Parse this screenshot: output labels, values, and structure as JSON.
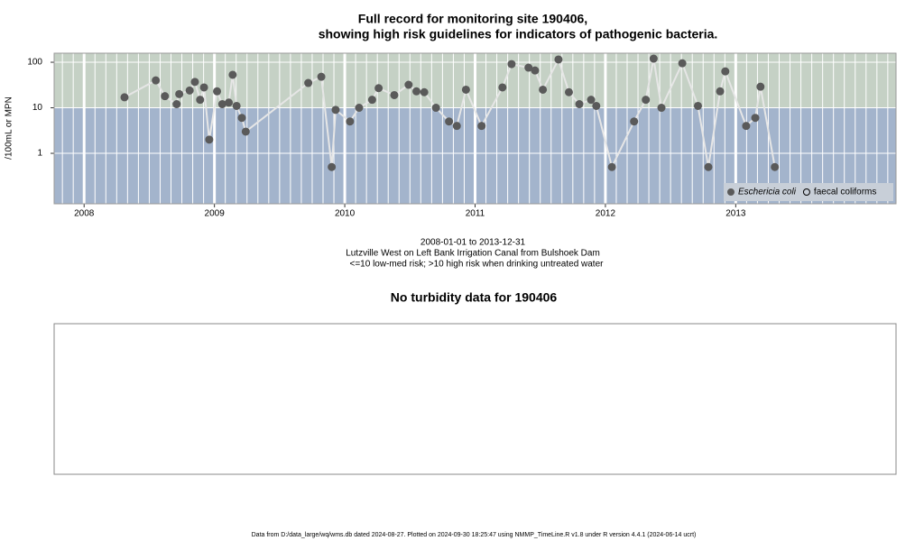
{
  "chart_data": [
    {
      "type": "scatter",
      "title": "Full record for monitoring site 190406,",
      "subtitle": "showing high risk guidelines for indicators of pathogenic bacteria.",
      "ylabel": "/100mL or MPN",
      "caption": [
        "2008-01-01 to 2013-12-31",
        "Lutzville West on Left Bank Irrigation Canal from Bulshoek Dam",
        "<=10 low-med risk; >10 high risk when drinking untreated water"
      ],
      "x": [
        2008.31,
        2008.55,
        2008.62,
        2008.71,
        2008.73,
        2008.81,
        2008.85,
        2008.89,
        2008.92,
        2008.96,
        2009.02,
        2009.06,
        2009.11,
        2009.14,
        2009.17,
        2009.21,
        2009.24,
        2009.72,
        2009.82,
        2009.9,
        2009.93,
        2010.04,
        2010.11,
        2010.21,
        2010.26,
        2010.38,
        2010.49,
        2010.55,
        2010.61,
        2010.7,
        2010.8,
        2010.86,
        2010.93,
        2011.05,
        2011.21,
        2011.28,
        2011.41,
        2011.46,
        2011.52,
        2011.64,
        2011.72,
        2011.8,
        2011.89,
        2011.93,
        2012.05,
        2012.22,
        2012.31,
        2012.37,
        2012.43,
        2012.59,
        2012.71,
        2012.79,
        2012.88,
        2012.92,
        2013.08,
        2013.15,
        2013.19,
        2013.3
      ],
      "series": [
        {
          "name": "Eschericia coli",
          "color": "#5a5a5a",
          "marker": "filled",
          "values": [
            17,
            40,
            18,
            12,
            20,
            24,
            37,
            15,
            28,
            2,
            23,
            12,
            13,
            53,
            11,
            6,
            3,
            35,
            48,
            0.5,
            9,
            5,
            10,
            15,
            27,
            19,
            32,
            23,
            22,
            10,
            5,
            4,
            25,
            4,
            28,
            91,
            76,
            66,
            25,
            115,
            22,
            12,
            15,
            11,
            0.5,
            5,
            15,
            120,
            10,
            95,
            11,
            0.5,
            23,
            63,
            4,
            6,
            29,
            0.5
          ]
        },
        {
          "name": "faecal coliforms",
          "color": "#000000",
          "marker": "open",
          "values": [
            null,
            null,
            null,
            null,
            null,
            null,
            null,
            null,
            null,
            null,
            null,
            null,
            null,
            null,
            null,
            null,
            null,
            null,
            null,
            null,
            null,
            null,
            null,
            null,
            null,
            null,
            null,
            null,
            null,
            null,
            null,
            null,
            null,
            null,
            null,
            null,
            null,
            null,
            null,
            null,
            null,
            null,
            null,
            null,
            null,
            null,
            null,
            null,
            null,
            null,
            null,
            null,
            null,
            null,
            null,
            null,
            null,
            null
          ]
        }
      ],
      "log_y": true,
      "threshold": 10,
      "xlim": [
        2007.77,
        2014.23
      ],
      "xticks": [
        2008,
        2009,
        2010,
        2011,
        2012,
        2013
      ],
      "ylim": [
        0.078,
        158
      ],
      "yticks": [
        1,
        10,
        100
      ],
      "grid": true,
      "legend": "bottom-right",
      "color_high": "#c5d1c5",
      "color_low": "#a3b4cc",
      "line_color": "#e6e6e6"
    },
    {
      "type": "empty",
      "title": "No turbidity data for 190406"
    }
  ],
  "footer": "Data from D:/data_large/wq/wms.db dated 2024-08-27. Plotted on 2024-09-30 18:25:47 using NMMP_TimeLine.R v1.8 under R version 4.4.1 (2024-06-14 ucrt)"
}
